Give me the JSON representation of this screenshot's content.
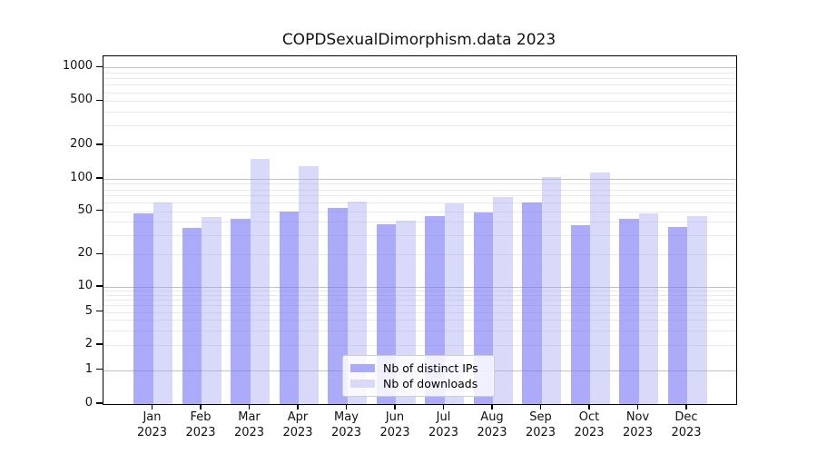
{
  "title": "COPDSexualDimorphism.data 2023",
  "colors": {
    "grid_major": "#c2c2c2",
    "grid_minor": "#eaeaea",
    "axis": "#000000",
    "series_dark": "#aaaaf8",
    "series_light": "#d9d9f8"
  },
  "chart_data": {
    "type": "bar",
    "title": "COPDSexualDimorphism.data 2023",
    "categories": [
      {
        "label": "Jan",
        "sub": "2023"
      },
      {
        "label": "Feb",
        "sub": "2023"
      },
      {
        "label": "Mar",
        "sub": "2023"
      },
      {
        "label": "Apr",
        "sub": "2023"
      },
      {
        "label": "May",
        "sub": "2023"
      },
      {
        "label": "Jun",
        "sub": "2023"
      },
      {
        "label": "Jul",
        "sub": "2023"
      },
      {
        "label": "Aug",
        "sub": "2023"
      },
      {
        "label": "Sep",
        "sub": "2023"
      },
      {
        "label": "Oct",
        "sub": "2023"
      },
      {
        "label": "Nov",
        "sub": "2023"
      },
      {
        "label": "Dec",
        "sub": "2023"
      }
    ],
    "series": [
      {
        "name": "Nb of distinct IPs",
        "color": "#aaaaf8",
        "fill": "rgba(115,115,246,0.60)",
        "values": [
          48,
          35,
          43,
          50,
          54,
          38,
          45,
          49,
          61,
          37,
          43,
          36
        ]
      },
      {
        "name": "Nb of downloads",
        "color": "#d9d9f8",
        "fill": "rgba(165,165,240,0.42)",
        "values": [
          61,
          44,
          150,
          130,
          62,
          41,
          59,
          68,
          103,
          115,
          48,
          45
        ]
      }
    ],
    "yscale": "log-like (0 baseline, log decades above 1)",
    "yticks": [
      0,
      1,
      2,
      5,
      10,
      20,
      50,
      100,
      200,
      500,
      1000
    ],
    "major_gridlines": [
      1,
      10,
      100,
      1000
    ],
    "ylim": [
      0,
      1000
    ],
    "xlabel": "",
    "ylabel": "",
    "grid": true,
    "legend_position": "lower center inside plot"
  }
}
